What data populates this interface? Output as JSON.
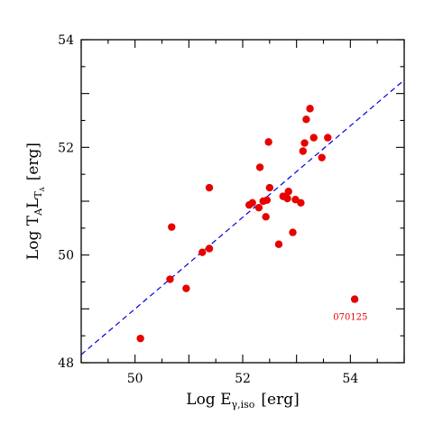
{
  "chart_data": {
    "type": "scatter",
    "title": "",
    "xlabel": {
      "prefix": "Log E",
      "sub": "γ,iso",
      "unit": "[erg]"
    },
    "ylabel": {
      "prefix": "Log T",
      "sub1": "A",
      "mid": "L",
      "sub2": "T",
      "sub2sub": "A",
      "unit": "[erg]"
    },
    "xlim": [
      49,
      55
    ],
    "ylim": [
      48,
      54
    ],
    "xticks": [
      50,
      52,
      54
    ],
    "yticks": [
      48,
      50,
      52,
      54
    ],
    "grid": false,
    "legend": "none",
    "colors": {
      "points": "#e80000",
      "fit_line": "#0000e0",
      "annotation": "#e80000"
    },
    "points": [
      {
        "x": 50.1,
        "y": 48.45
      },
      {
        "x": 50.65,
        "y": 49.55
      },
      {
        "x": 50.68,
        "y": 50.52
      },
      {
        "x": 50.95,
        "y": 49.38
      },
      {
        "x": 51.25,
        "y": 50.05
      },
      {
        "x": 51.38,
        "y": 50.12
      },
      {
        "x": 51.38,
        "y": 51.25
      },
      {
        "x": 52.12,
        "y": 50.93
      },
      {
        "x": 52.18,
        "y": 50.97
      },
      {
        "x": 52.3,
        "y": 50.88
      },
      {
        "x": 52.32,
        "y": 51.63
      },
      {
        "x": 52.38,
        "y": 51.0
      },
      {
        "x": 52.43,
        "y": 50.71
      },
      {
        "x": 52.45,
        "y": 51.02
      },
      {
        "x": 52.48,
        "y": 52.1
      },
      {
        "x": 52.5,
        "y": 51.25
      },
      {
        "x": 52.67,
        "y": 50.2
      },
      {
        "x": 52.75,
        "y": 51.09
      },
      {
        "x": 52.83,
        "y": 51.05
      },
      {
        "x": 52.85,
        "y": 51.18
      },
      {
        "x": 52.93,
        "y": 50.42
      },
      {
        "x": 52.98,
        "y": 51.03
      },
      {
        "x": 53.08,
        "y": 50.97
      },
      {
        "x": 53.12,
        "y": 51.93
      },
      {
        "x": 53.15,
        "y": 52.08
      },
      {
        "x": 53.18,
        "y": 52.52
      },
      {
        "x": 53.25,
        "y": 52.72
      },
      {
        "x": 53.32,
        "y": 52.18
      },
      {
        "x": 53.47,
        "y": 51.81
      },
      {
        "x": 53.58,
        "y": 52.18
      },
      {
        "x": 54.08,
        "y": 49.18
      }
    ],
    "fit_line": {
      "style": "dashed",
      "x": [
        49,
        55
      ],
      "y": [
        48.15,
        53.25
      ]
    },
    "annotations": [
      {
        "text": "070125",
        "x": 54.0,
        "y": 48.8
      }
    ]
  }
}
